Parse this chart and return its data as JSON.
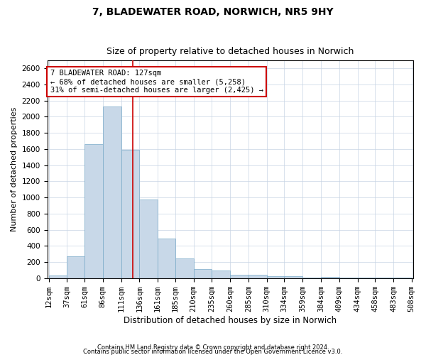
{
  "title1": "7, BLADEWATER ROAD, NORWICH, NR5 9HY",
  "title2": "Size of property relative to detached houses in Norwich",
  "xlabel": "Distribution of detached houses by size in Norwich",
  "ylabel": "Number of detached properties",
  "footer1": "Contains HM Land Registry data © Crown copyright and database right 2024.",
  "footer2": "Contains public sector information licensed under the Open Government Licence v3.0.",
  "annotation_line1": "7 BLADEWATER ROAD: 127sqm",
  "annotation_line2": "← 68% of detached houses are smaller (5,258)",
  "annotation_line3": "31% of semi-detached houses are larger (2,425) →",
  "property_size": 127,
  "bin_edges": [
    12,
    37,
    61,
    86,
    111,
    136,
    161,
    185,
    210,
    235,
    260,
    285,
    310,
    334,
    359,
    384,
    409,
    434,
    458,
    483,
    508
  ],
  "bar_values": [
    30,
    270,
    1660,
    2130,
    1590,
    970,
    490,
    240,
    110,
    90,
    45,
    40,
    25,
    20,
    10,
    15,
    5,
    5,
    10,
    5
  ],
  "bar_color": "#c8d8e8",
  "bar_edge_color": "#7aaac8",
  "vline_color": "#cc0000",
  "grid_color": "#c8d4e4",
  "ylim": [
    0,
    2700
  ],
  "yticks": [
    0,
    200,
    400,
    600,
    800,
    1000,
    1200,
    1400,
    1600,
    1800,
    2000,
    2200,
    2400,
    2600
  ],
  "annotation_box_edge": "#cc0000",
  "title1_fontsize": 10,
  "title2_fontsize": 9,
  "xlabel_fontsize": 8.5,
  "ylabel_fontsize": 8,
  "tick_fontsize": 7.5,
  "annotation_fontsize": 7.5
}
